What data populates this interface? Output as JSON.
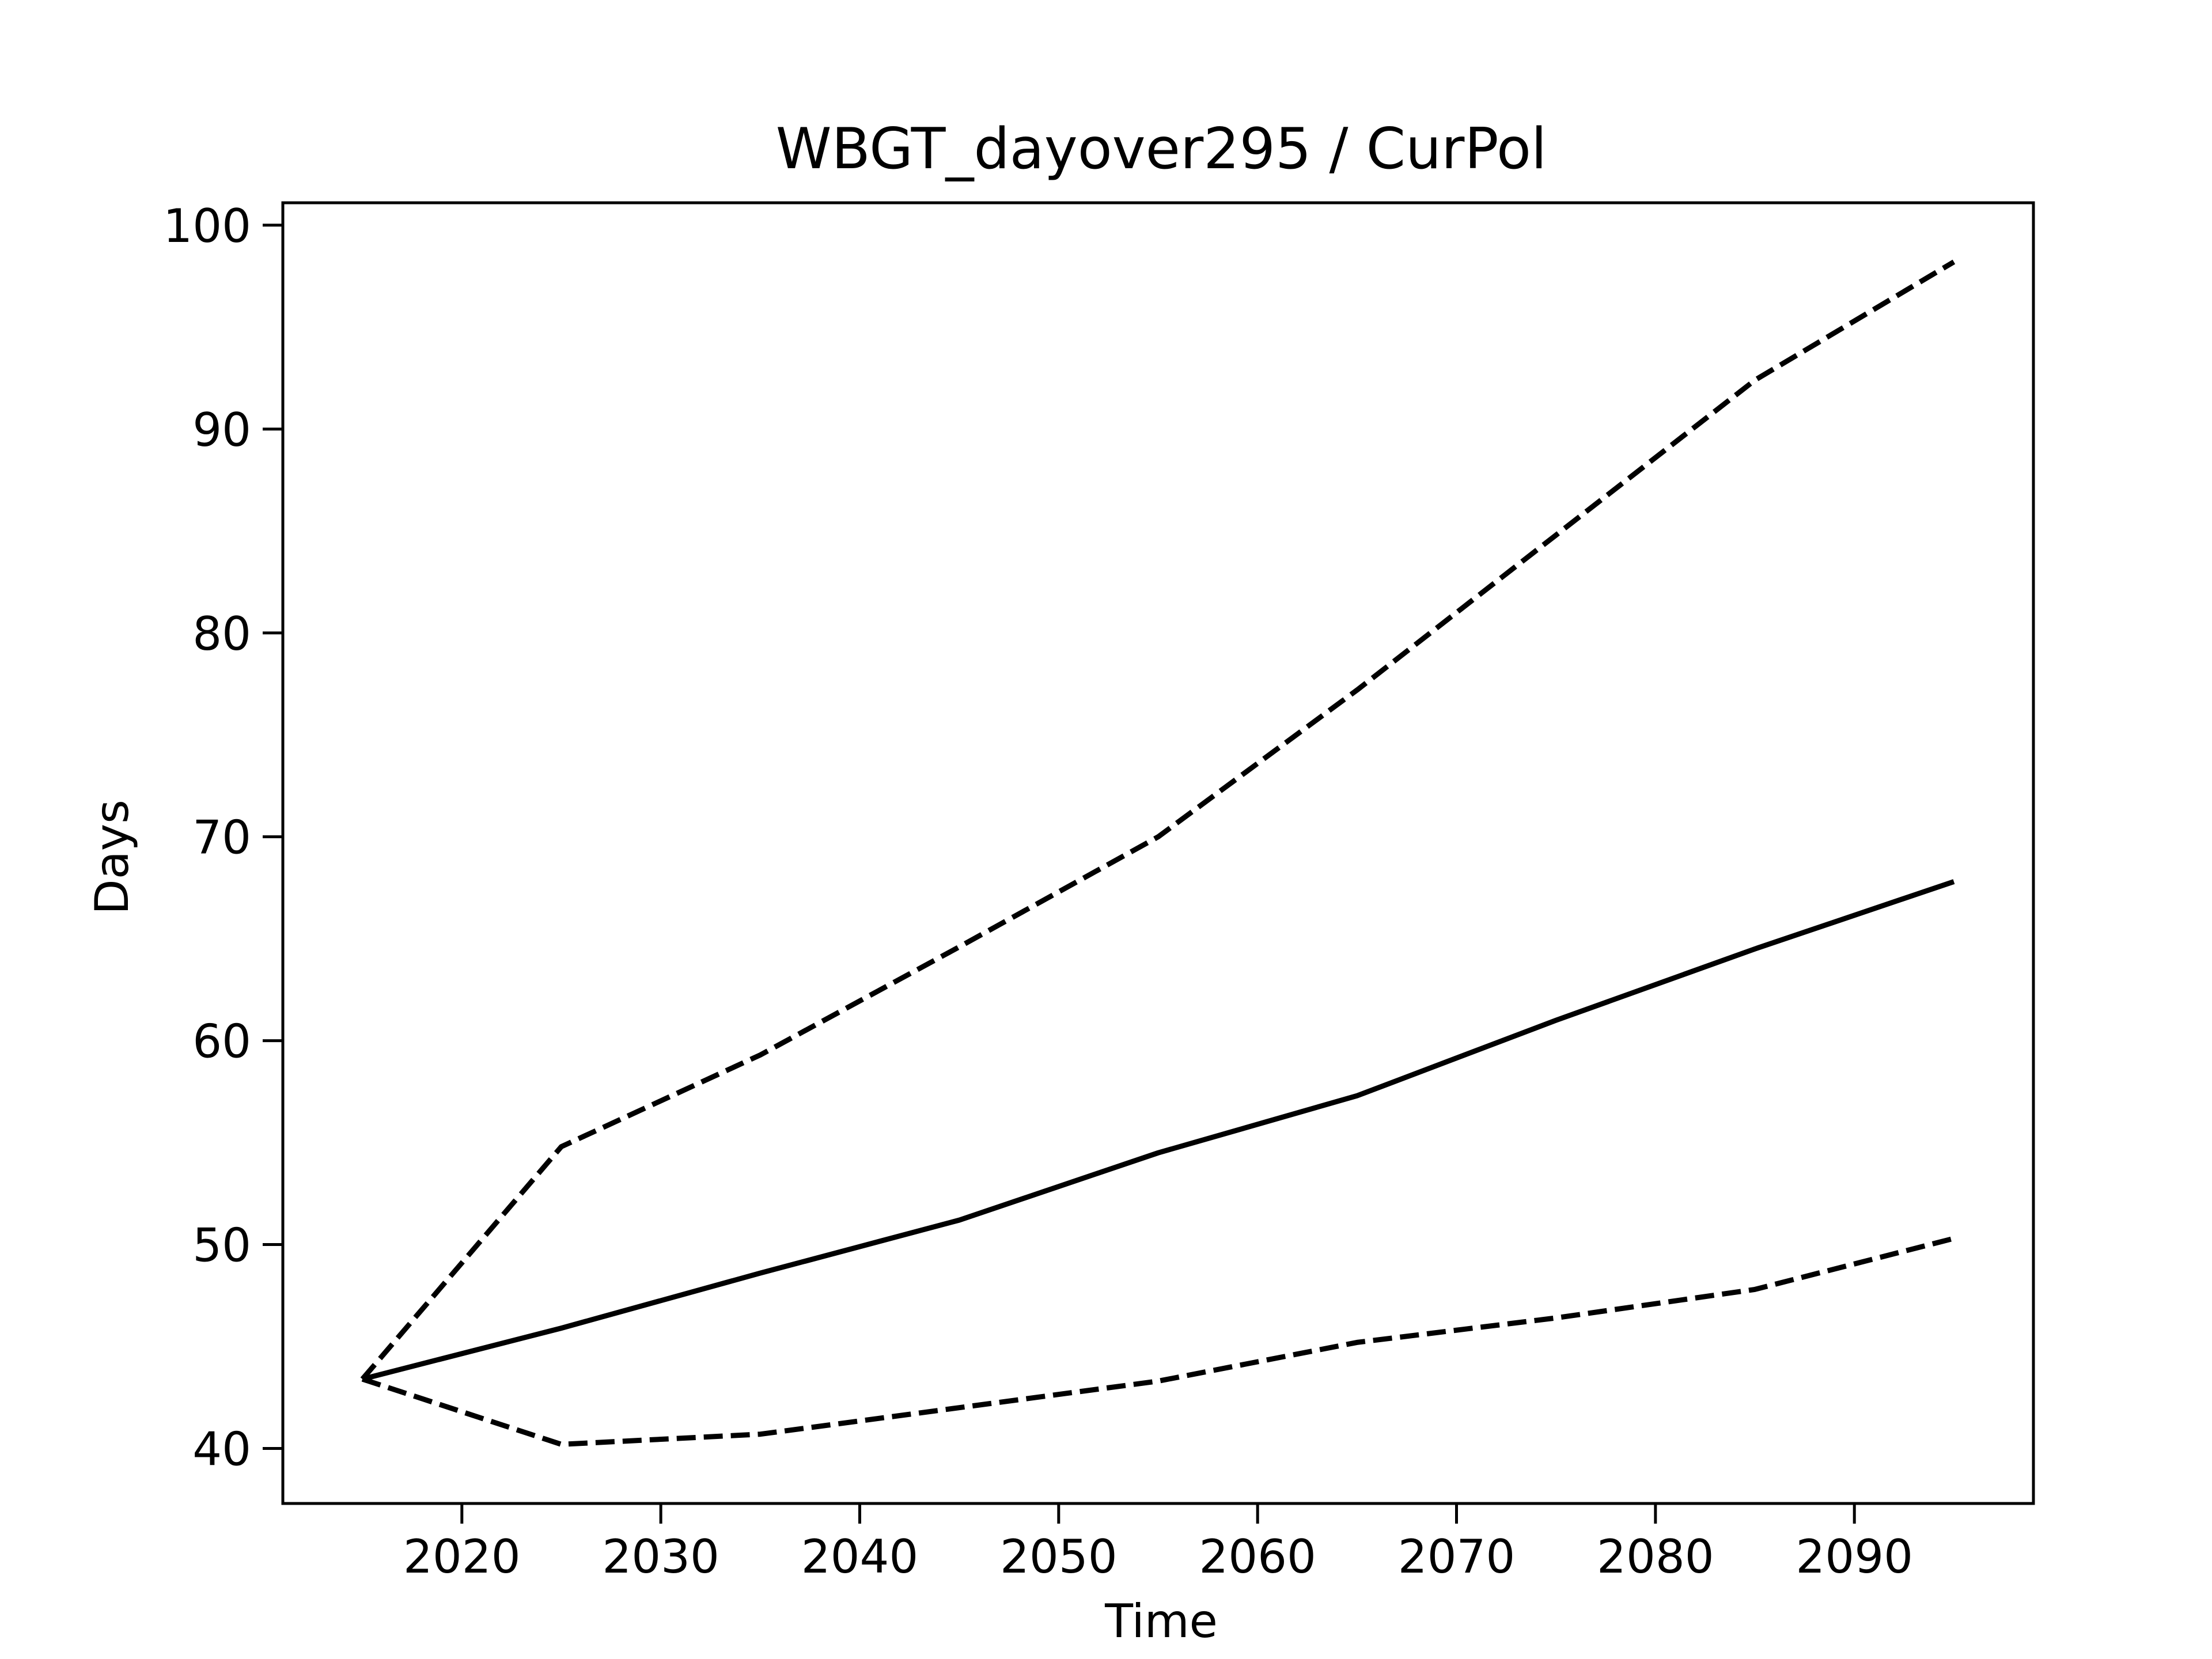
{
  "chart_data": {
    "type": "line",
    "title": "WBGT_dayover295 / CurPol",
    "xlabel": "Time",
    "ylabel": "Days",
    "xlim": [
      2011,
      2099
    ],
    "ylim": [
      37.3,
      101.1
    ],
    "xticks": [
      2020,
      2030,
      2040,
      2050,
      2060,
      2070,
      2080,
      2090
    ],
    "yticks": [
      40,
      50,
      60,
      70,
      80,
      90,
      100
    ],
    "grid": false,
    "legend": "none",
    "color": "#000000",
    "series": [
      {
        "style": "dashed",
        "x": [
          2015,
          2025,
          2035,
          2045,
          2055,
          2065,
          2075,
          2085,
          2095
        ],
        "y": [
          43.4,
          54.8,
          59.3,
          64.6,
          70.0,
          77.2,
          84.8,
          92.4,
          98.2
        ]
      },
      {
        "style": "solid",
        "x": [
          2015,
          2025,
          2035,
          2045,
          2055,
          2065,
          2075,
          2085,
          2095
        ],
        "y": [
          43.4,
          45.9,
          48.6,
          51.2,
          54.5,
          57.3,
          61.0,
          64.5,
          67.8
        ]
      },
      {
        "style": "dashed",
        "x": [
          2015,
          2025,
          2035,
          2045,
          2055,
          2065,
          2075,
          2085,
          2095
        ],
        "y": [
          43.4,
          40.2,
          40.7,
          42.0,
          43.3,
          45.2,
          46.4,
          47.8,
          50.3
        ]
      }
    ]
  }
}
